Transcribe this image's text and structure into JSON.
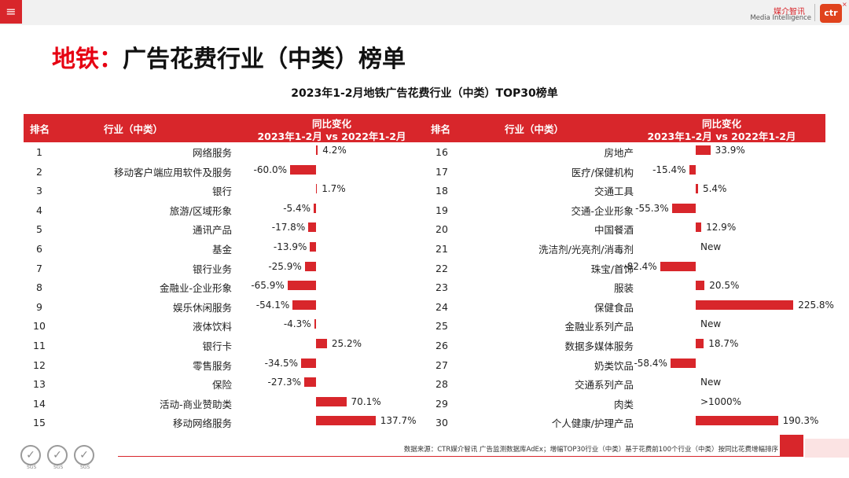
{
  "header": {
    "menu_icon": "≡",
    "brand_cn": "媒介智讯",
    "brand_en": "Media Intelligence",
    "logo_text": "ctr",
    "logo_close": "×"
  },
  "title": {
    "accent": "地铁：",
    "main": "广告花费行业（中类）榜单"
  },
  "chart_data": {
    "type": "bar",
    "title": "2023年1-2月地铁广告花费行业（中类）TOP30榜单",
    "columns": {
      "rank": "排名",
      "industry": "行业（中类）",
      "change_line1": "同比变化",
      "change_line2": "2023年1-2月 vs 2022年1-2月"
    },
    "unit": "%",
    "rows": [
      {
        "rank": "1",
        "industry": "网络服务",
        "value": 4.2,
        "label": "4.2%"
      },
      {
        "rank": "2",
        "industry": "移动客户端应用软件及服务",
        "value": -60.0,
        "label": "-60.0%"
      },
      {
        "rank": "3",
        "industry": "银行",
        "value": 1.7,
        "label": "1.7%"
      },
      {
        "rank": "4",
        "industry": "旅游/区域形象",
        "value": -5.4,
        "label": "-5.4%"
      },
      {
        "rank": "5",
        "industry": "通讯产品",
        "value": -17.8,
        "label": "-17.8%"
      },
      {
        "rank": "6",
        "industry": "基金",
        "value": -13.9,
        "label": "-13.9%"
      },
      {
        "rank": "7",
        "industry": "银行业务",
        "value": -25.9,
        "label": "-25.9%"
      },
      {
        "rank": "8",
        "industry": "金融业-企业形象",
        "value": -65.9,
        "label": "-65.9%"
      },
      {
        "rank": "9",
        "industry": "娱乐休闲服务",
        "value": -54.1,
        "label": "-54.1%"
      },
      {
        "rank": "10",
        "industry": "液体饮料",
        "value": -4.3,
        "label": "-4.3%"
      },
      {
        "rank": "11",
        "industry": "银行卡",
        "value": 25.2,
        "label": "25.2%"
      },
      {
        "rank": "12",
        "industry": "零售服务",
        "value": -34.5,
        "label": "-34.5%"
      },
      {
        "rank": "13",
        "industry": "保险",
        "value": -27.3,
        "label": "-27.3%"
      },
      {
        "rank": "14",
        "industry": "活动-商业赞助类",
        "value": 70.1,
        "label": "70.1%"
      },
      {
        "rank": "15",
        "industry": "移动网络服务",
        "value": 137.7,
        "label": "137.7%"
      },
      {
        "rank": "16",
        "industry": "房地产",
        "value": 33.9,
        "label": "33.9%"
      },
      {
        "rank": "17",
        "industry": "医疗/保健机构",
        "value": -15.4,
        "label": "-15.4%"
      },
      {
        "rank": "18",
        "industry": "交通工具",
        "value": 5.4,
        "label": "5.4%"
      },
      {
        "rank": "19",
        "industry": "交通-企业形象",
        "value": -55.3,
        "label": "-55.3%"
      },
      {
        "rank": "20",
        "industry": "中国餐酒",
        "value": 12.9,
        "label": "12.9%"
      },
      {
        "rank": "21",
        "industry": "洗洁剂/光亮剂/消毒剂",
        "value": null,
        "label": "New"
      },
      {
        "rank": "22",
        "industry": "珠宝/首饰",
        "value": -82.4,
        "label": "-82.4%"
      },
      {
        "rank": "23",
        "industry": "服装",
        "value": 20.5,
        "label": "20.5%"
      },
      {
        "rank": "24",
        "industry": "保健食品",
        "value": 225.8,
        "label": "225.8%"
      },
      {
        "rank": "25",
        "industry": "金融业系列产品",
        "value": null,
        "label": "New"
      },
      {
        "rank": "26",
        "industry": "数据多媒体服务",
        "value": 18.7,
        "label": "18.7%"
      },
      {
        "rank": "27",
        "industry": "奶类饮品",
        "value": -58.4,
        "label": "-58.4%"
      },
      {
        "rank": "28",
        "industry": "交通系列产品",
        "value": null,
        "label": "New"
      },
      {
        "rank": "29",
        "industry": "肉类",
        "value": null,
        "label": ">1000%"
      },
      {
        "rank": "30",
        "industry": "个人健康/护理产品",
        "value": 190.3,
        "label": "190.3%"
      }
    ]
  },
  "footer": {
    "source": "数据来源：CTR媒介智讯 广告监测数据库AdEx；增幅TOP30行业（中类）基于花费前100个行业（中类）按同比花费增幅排序",
    "cert_label": "SGS"
  }
}
